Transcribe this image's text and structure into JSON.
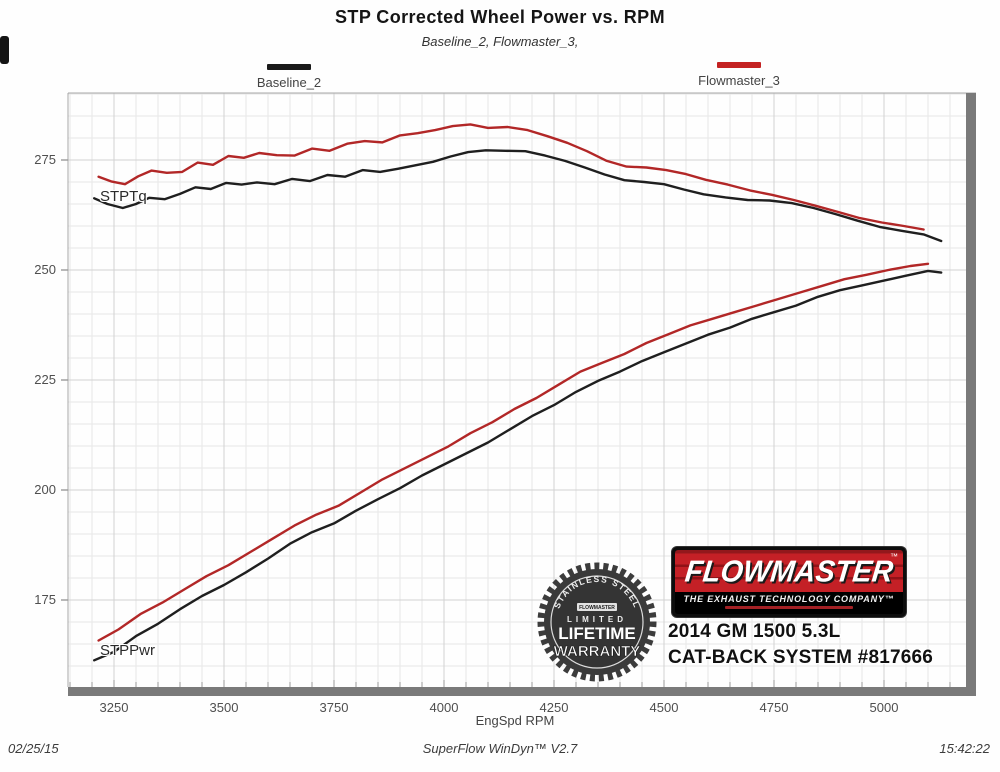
{
  "title": "STP Corrected Wheel Power vs. RPM",
  "subtitle": "Baseline_2, Flowmaster_3,",
  "legend": [
    {
      "label": "Baseline_2",
      "color": "#1a1a1a"
    },
    {
      "label": "Flowmaster_3",
      "color": "#c42222"
    }
  ],
  "curve_labels": {
    "torque": "STPTq",
    "power": "STPPwr"
  },
  "axis": {
    "x_title": "EngSpd RPM"
  },
  "footer": {
    "date": "02/25/15",
    "software": "SuperFlow WinDyn™ V2.7",
    "time": "15:42:22"
  },
  "overlay": {
    "badge": {
      "arc_text": "STAINLESS STEEL",
      "brand_small": "FLOWMASTER",
      "line1": "LIMITED",
      "line2": "LIFETIME",
      "line3": "WARRANTY"
    },
    "logo": {
      "brand": "FLOWMASTER",
      "tm": "™",
      "tagline": "THE EXHAUST TECHNOLOGY COMPANY™"
    },
    "vehicle_line1": "2014 GM 1500 5.3L",
    "vehicle_line2": "CAT-BACK SYSTEM #817666"
  },
  "colors": {
    "baseline": "#1f1f1f",
    "flowmaster": "#b22727",
    "grid_minor": "#e7e7e7",
    "grid_major": "#d2d2d2",
    "axis_bar": "#7a7a7a",
    "border": "#a8a8a8",
    "tick": "#9a9a9a"
  },
  "chart_data": {
    "type": "line",
    "title": "STP Corrected Wheel Power vs. RPM",
    "subtitle": "Baseline_2, Flowmaster_3,",
    "xlabel": "EngSpd RPM",
    "ylabel": "",
    "x_ticks": [
      3250,
      3500,
      3750,
      4000,
      4250,
      4500,
      4750,
      5000
    ],
    "y_ticks": [
      175,
      200,
      225,
      250,
      275
    ],
    "x_minor_step": 50,
    "y_minor_step": 5,
    "xlim": [
      3145,
      5186
    ],
    "ylim": [
      155,
      290
    ],
    "grid": true,
    "legend_position": "top",
    "series": [
      {
        "name": "Baseline_2 STPTq",
        "legend": "Baseline_2",
        "measure": "torque",
        "color": "#1f1f1f",
        "points": [
          [
            3205,
            266.3
          ],
          [
            3235,
            265.0
          ],
          [
            3270,
            264.1
          ],
          [
            3300,
            265.0
          ],
          [
            3330,
            266.4
          ],
          [
            3365,
            266.1
          ],
          [
            3400,
            267.3
          ],
          [
            3435,
            268.8
          ],
          [
            3470,
            268.4
          ],
          [
            3505,
            269.8
          ],
          [
            3540,
            269.4
          ],
          [
            3575,
            269.9
          ],
          [
            3615,
            269.5
          ],
          [
            3655,
            270.7
          ],
          [
            3695,
            270.2
          ],
          [
            3735,
            271.6
          ],
          [
            3775,
            271.2
          ],
          [
            3815,
            272.7
          ],
          [
            3855,
            272.3
          ],
          [
            3895,
            273.0
          ],
          [
            3935,
            273.8
          ],
          [
            3975,
            274.6
          ],
          [
            4015,
            275.8
          ],
          [
            4055,
            276.8
          ],
          [
            4095,
            277.2
          ],
          [
            4140,
            277.1
          ],
          [
            4185,
            277.0
          ],
          [
            4230,
            276.0
          ],
          [
            4275,
            274.8
          ],
          [
            4320,
            273.3
          ],
          [
            4365,
            271.7
          ],
          [
            4410,
            270.4
          ],
          [
            4455,
            270.0
          ],
          [
            4500,
            269.5
          ],
          [
            4545,
            268.3
          ],
          [
            4590,
            267.2
          ],
          [
            4640,
            266.5
          ],
          [
            4690,
            265.9
          ],
          [
            4740,
            265.8
          ],
          [
            4790,
            265.2
          ],
          [
            4840,
            264.1
          ],
          [
            4890,
            262.7
          ],
          [
            4940,
            261.2
          ],
          [
            4990,
            259.8
          ],
          [
            5040,
            258.9
          ],
          [
            5090,
            258.1
          ],
          [
            5130,
            256.6
          ]
        ]
      },
      {
        "name": "Flowmaster_3 STPTq",
        "legend": "Flowmaster_3",
        "measure": "torque",
        "color": "#b22727",
        "points": [
          [
            3215,
            271.2
          ],
          [
            3245,
            270.1
          ],
          [
            3275,
            269.5
          ],
          [
            3305,
            271.3
          ],
          [
            3335,
            272.6
          ],
          [
            3370,
            272.1
          ],
          [
            3405,
            272.3
          ],
          [
            3440,
            274.4
          ],
          [
            3475,
            273.9
          ],
          [
            3510,
            275.9
          ],
          [
            3545,
            275.5
          ],
          [
            3580,
            276.6
          ],
          [
            3620,
            276.1
          ],
          [
            3660,
            276.0
          ],
          [
            3700,
            277.6
          ],
          [
            3740,
            277.1
          ],
          [
            3780,
            278.7
          ],
          [
            3820,
            279.3
          ],
          [
            3860,
            279.0
          ],
          [
            3900,
            280.6
          ],
          [
            3940,
            281.1
          ],
          [
            3980,
            281.8
          ],
          [
            4020,
            282.7
          ],
          [
            4060,
            283.1
          ],
          [
            4100,
            282.3
          ],
          [
            4145,
            282.5
          ],
          [
            4190,
            281.8
          ],
          [
            4235,
            280.4
          ],
          [
            4280,
            278.9
          ],
          [
            4325,
            277.0
          ],
          [
            4370,
            274.8
          ],
          [
            4415,
            273.5
          ],
          [
            4460,
            273.3
          ],
          [
            4505,
            272.7
          ],
          [
            4550,
            271.8
          ],
          [
            4595,
            270.5
          ],
          [
            4645,
            269.4
          ],
          [
            4695,
            268.1
          ],
          [
            4745,
            267.1
          ],
          [
            4795,
            265.9
          ],
          [
            4845,
            264.6
          ],
          [
            4895,
            263.2
          ],
          [
            4945,
            261.8
          ],
          [
            4995,
            260.8
          ],
          [
            5045,
            260.0
          ],
          [
            5090,
            259.2
          ]
        ]
      },
      {
        "name": "Baseline_2 STPPwr",
        "legend": "Baseline_2",
        "measure": "power",
        "color": "#1f1f1f",
        "points": [
          [
            3205,
            161.3
          ],
          [
            3250,
            163.2
          ],
          [
            3300,
            166.8
          ],
          [
            3350,
            169.6
          ],
          [
            3400,
            172.9
          ],
          [
            3450,
            175.9
          ],
          [
            3500,
            178.4
          ],
          [
            3550,
            181.3
          ],
          [
            3600,
            184.4
          ],
          [
            3650,
            187.8
          ],
          [
            3700,
            190.4
          ],
          [
            3750,
            192.4
          ],
          [
            3800,
            195.3
          ],
          [
            3850,
            197.9
          ],
          [
            3900,
            200.4
          ],
          [
            3950,
            203.3
          ],
          [
            4000,
            205.8
          ],
          [
            4050,
            208.3
          ],
          [
            4100,
            210.8
          ],
          [
            4150,
            213.8
          ],
          [
            4200,
            216.8
          ],
          [
            4250,
            219.3
          ],
          [
            4300,
            222.3
          ],
          [
            4350,
            224.8
          ],
          [
            4400,
            226.9
          ],
          [
            4450,
            229.3
          ],
          [
            4500,
            231.3
          ],
          [
            4550,
            233.3
          ],
          [
            4600,
            235.3
          ],
          [
            4650,
            236.9
          ],
          [
            4700,
            238.9
          ],
          [
            4750,
            240.4
          ],
          [
            4800,
            241.9
          ],
          [
            4850,
            243.9
          ],
          [
            4900,
            245.4
          ],
          [
            4950,
            246.5
          ],
          [
            5000,
            247.6
          ],
          [
            5050,
            248.7
          ],
          [
            5100,
            249.8
          ],
          [
            5130,
            249.4
          ]
        ]
      },
      {
        "name": "Flowmaster_3 STPPwr",
        "legend": "Flowmaster_3",
        "measure": "power",
        "color": "#b22727",
        "points": [
          [
            3215,
            165.8
          ],
          [
            3260,
            168.3
          ],
          [
            3310,
            171.8
          ],
          [
            3360,
            174.4
          ],
          [
            3410,
            177.4
          ],
          [
            3460,
            180.4
          ],
          [
            3510,
            182.9
          ],
          [
            3560,
            185.9
          ],
          [
            3610,
            188.9
          ],
          [
            3660,
            191.9
          ],
          [
            3710,
            194.4
          ],
          [
            3760,
            196.4
          ],
          [
            3810,
            199.4
          ],
          [
            3860,
            202.4
          ],
          [
            3910,
            204.9
          ],
          [
            3960,
            207.4
          ],
          [
            4010,
            209.9
          ],
          [
            4060,
            212.9
          ],
          [
            4110,
            215.4
          ],
          [
            4160,
            218.4
          ],
          [
            4210,
            220.9
          ],
          [
            4260,
            223.9
          ],
          [
            4310,
            226.9
          ],
          [
            4360,
            228.9
          ],
          [
            4410,
            230.9
          ],
          [
            4460,
            233.4
          ],
          [
            4510,
            235.4
          ],
          [
            4560,
            237.4
          ],
          [
            4610,
            238.9
          ],
          [
            4660,
            240.4
          ],
          [
            4710,
            241.9
          ],
          [
            4760,
            243.4
          ],
          [
            4810,
            244.9
          ],
          [
            4860,
            246.4
          ],
          [
            4910,
            247.9
          ],
          [
            4960,
            248.9
          ],
          [
            5010,
            250.0
          ],
          [
            5060,
            250.9
          ],
          [
            5100,
            251.4
          ]
        ]
      }
    ]
  }
}
